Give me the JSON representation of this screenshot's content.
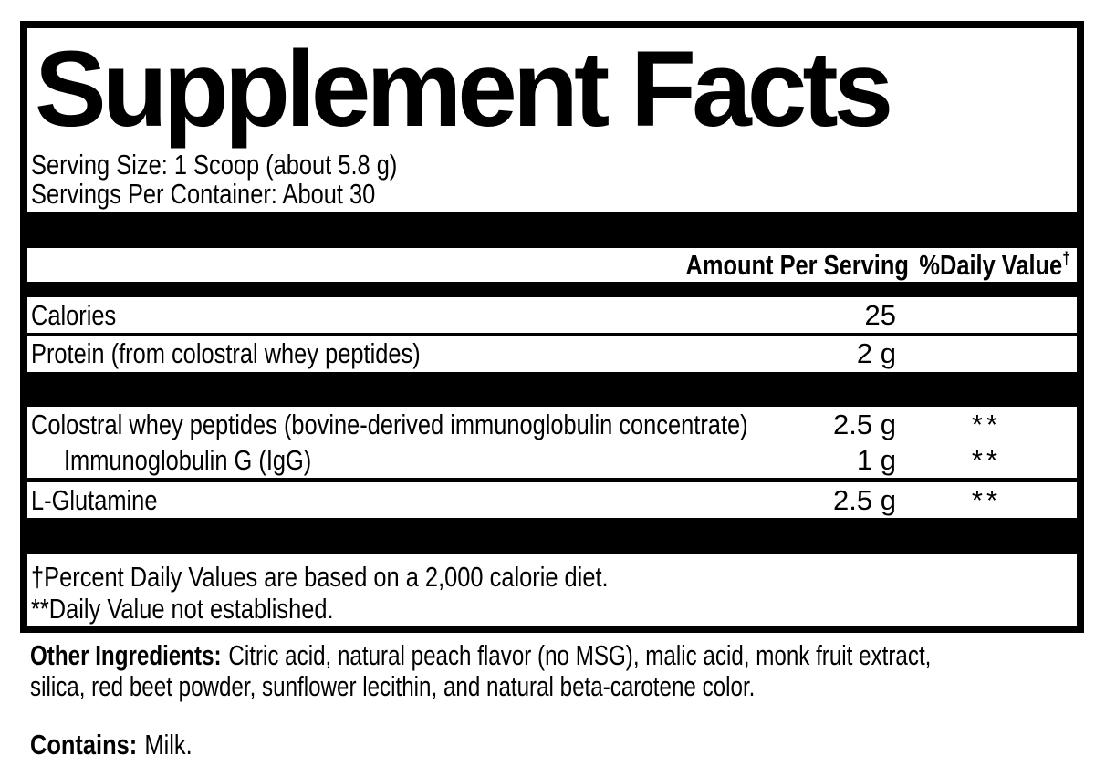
{
  "panel": {
    "title": "Supplement Facts",
    "serving_size": "Serving Size: 1 Scoop (about 5.8 g)",
    "servings_per_container": "Servings Per Container: About 30",
    "columns": {
      "amount": "Amount Per Serving",
      "daily_value": "%Daily Value",
      "daily_value_mark": "†"
    },
    "rows": [
      {
        "name": "Calories",
        "amount": "25",
        "dv": ""
      },
      {
        "name": "Protein (from colostral whey peptides)",
        "amount": "2 g",
        "dv": ""
      },
      {
        "name": "Colostral whey peptides (bovine-derived immunoglobulin concentrate)",
        "amount": "2.5 g",
        "dv": "**"
      },
      {
        "name": "Immunoglobulin G (IgG)",
        "amount": "1 g",
        "dv": "**"
      },
      {
        "name": "L-Glutamine",
        "amount": "2.5 g",
        "dv": "**"
      }
    ],
    "footnotes": [
      "†Percent Daily Values are based on a 2,000 calorie diet.",
      "**Daily Value not established."
    ],
    "other_ingredients": {
      "label": "Other Ingredients:",
      "line1": "Citric acid, natural peach flavor (no MSG), malic acid, monk fruit extract,",
      "line2": "silica, red beet powder, sunflower lecithin, and natural beta-carotene color."
    },
    "contains": {
      "label": "Contains:",
      "text": "Milk."
    }
  }
}
